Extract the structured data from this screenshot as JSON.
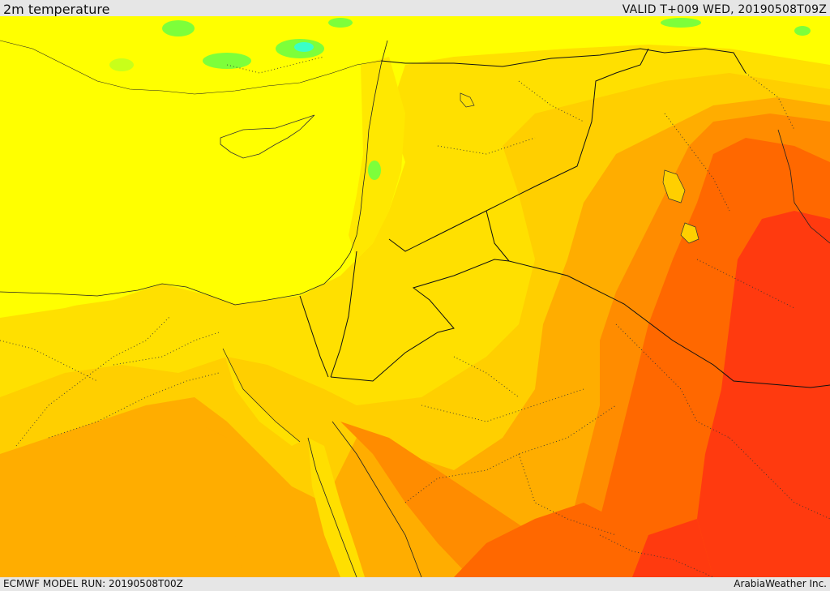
{
  "header": {
    "title": "2m temperature",
    "valid": "VALID T+009 WED, 20190508T09Z"
  },
  "footer": {
    "model_run": "ECMWF MODEL RUN: 20190508T00Z",
    "credit": "ArabiaWeather Inc."
  },
  "colors": {
    "sea_yellow": "#ffff00",
    "light_gold": "#ffe000",
    "gold": "#ffcf00",
    "orange": "#ffad00",
    "dark_orange": "#ff8c00",
    "red_orange": "#ff6800",
    "red": "#ff3a0f",
    "green": "#7dff3a",
    "cyan": "#3affc8"
  }
}
